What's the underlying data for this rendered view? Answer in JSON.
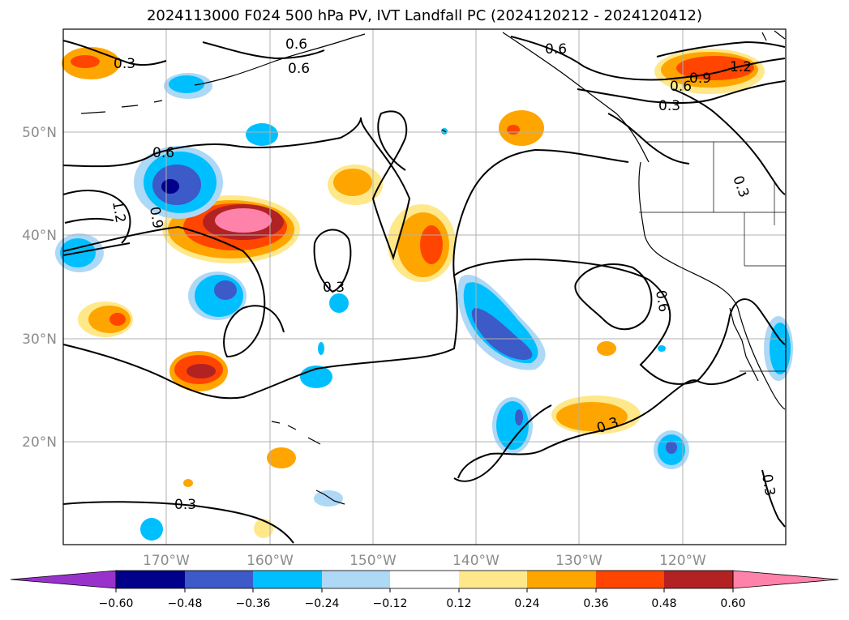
{
  "title": "2024113000 F024 500 hPa PV, IVT Landfall PC (2024120212 - 2024120412)",
  "map": {
    "lon_labels": [
      "170°W",
      "160°W",
      "150°W",
      "140°W",
      "130°W",
      "120°W"
    ],
    "lat_labels": [
      "50°N",
      "40°N",
      "30°N",
      "20°N"
    ],
    "contour_labels": [
      "0.3",
      "0.6",
      "0.9",
      "1.2"
    ],
    "contour_color": "#000000",
    "gridlines": true
  },
  "colorbar": {
    "ticks": [
      "−0.60",
      "−0.48",
      "−0.36",
      "−0.24",
      "−0.12",
      "0.12",
      "0.24",
      "0.36",
      "0.48",
      "0.60"
    ],
    "colors": [
      "#9932cc",
      "#00008b",
      "#3c5ac8",
      "#00bfff",
      "#add8f6",
      "#ffffff",
      "#ffe88a",
      "#ffa500",
      "#ff4500",
      "#b22222",
      "#ff82ab"
    ],
    "extend": "both"
  }
}
